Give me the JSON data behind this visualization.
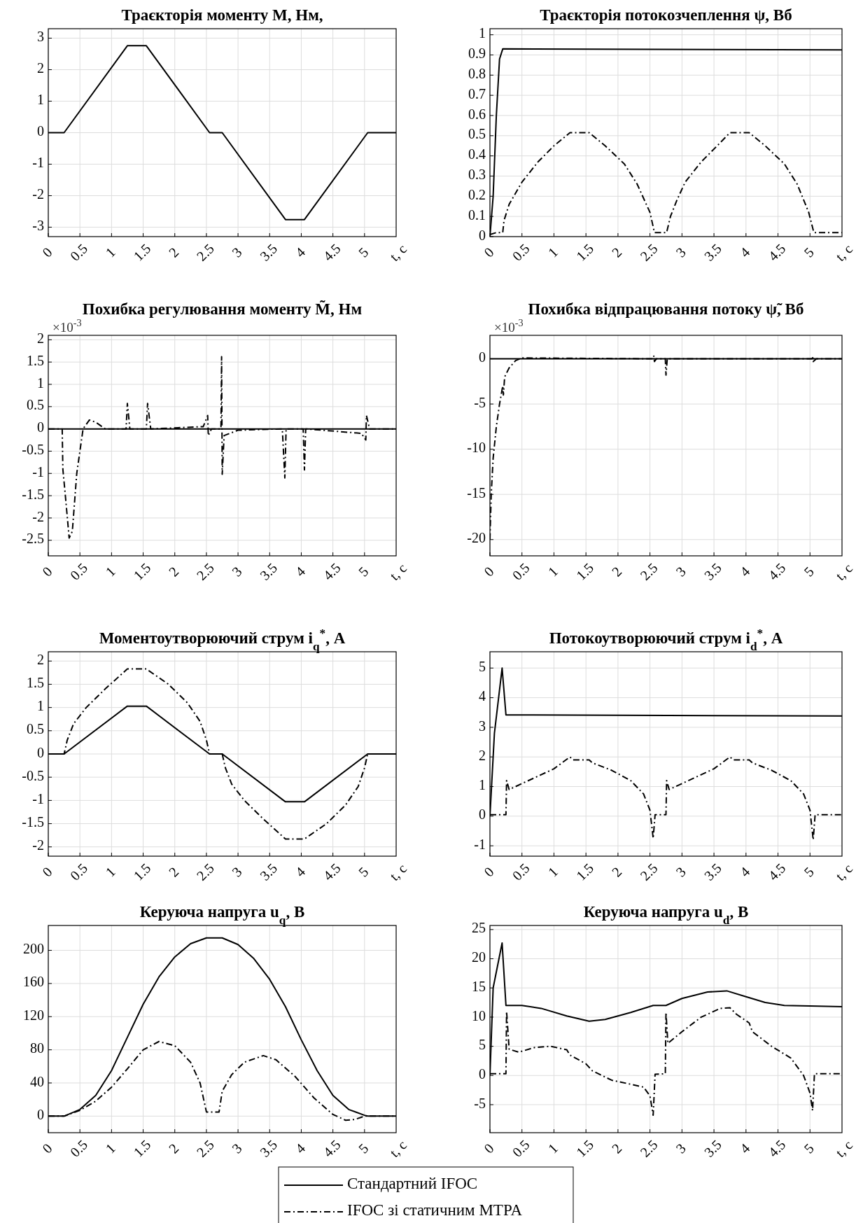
{
  "chart_data": [
    {
      "type": "line",
      "title": "Траєкторія моменту М, Нм,",
      "xlabel": "t, c",
      "xlim": [
        0,
        5.5
      ],
      "xticks": [
        0,
        0.5,
        1,
        1.5,
        2,
        2.5,
        3,
        3.5,
        4,
        4.5,
        5
      ],
      "ylim": [
        -3.3,
        3.3
      ],
      "yticks": [
        -3,
        -2,
        -1,
        0,
        1,
        2,
        3
      ],
      "grid": true,
      "series": [
        {
          "color": "#000000",
          "line_style": "solid",
          "x": [
            0,
            0.25,
            1.25,
            1.55,
            2.55,
            2.75,
            3.75,
            4.05,
            5.05,
            5.5
          ],
          "values": [
            0,
            0,
            2.76,
            2.76,
            0,
            0,
            -2.76,
            -2.76,
            0,
            0
          ]
        }
      ]
    },
    {
      "type": "line",
      "title": "Траєкторія потокозчеплення  ψ, Вб",
      "xlabel": "t, c",
      "xlim": [
        0,
        5.5
      ],
      "xticks": [
        0,
        0.5,
        1,
        1.5,
        2,
        2.5,
        3,
        3.5,
        4,
        4.5,
        5
      ],
      "ylim": [
        0,
        1.03
      ],
      "yticks": [
        0,
        0.1,
        0.2,
        0.3,
        0.4,
        0.5,
        0.6,
        0.7,
        0.8,
        0.9,
        1
      ],
      "grid": true,
      "series": [
        {
          "color": "#000000",
          "line_style": "solid",
          "x": [
            0,
            0.05,
            0.1,
            0.15,
            0.2,
            5.5
          ],
          "values": [
            0,
            0.2,
            0.6,
            0.88,
            0.93,
            0.925
          ]
        },
        {
          "color": "#000000",
          "line_style": "dashdot",
          "x": [
            0,
            0.1,
            0.2,
            0.22,
            0.3,
            0.5,
            0.75,
            1,
            1.25,
            1.55,
            1.8,
            2.1,
            2.3,
            2.5,
            2.57,
            2.76,
            2.82,
            2.92,
            3.05,
            3.3,
            3.55,
            3.75,
            4.05,
            4.3,
            4.6,
            4.8,
            4.98,
            5.06,
            5.5
          ],
          "values": [
            0.01,
            0.02,
            0.02,
            0.08,
            0.16,
            0.27,
            0.37,
            0.45,
            0.515,
            0.515,
            0.45,
            0.36,
            0.26,
            0.12,
            0.02,
            0.02,
            0.1,
            0.18,
            0.27,
            0.37,
            0.45,
            0.515,
            0.515,
            0.45,
            0.36,
            0.26,
            0.12,
            0.02,
            0.02
          ]
        }
      ]
    },
    {
      "type": "line",
      "title": "Похибка регулювання моменту M̃, Нм",
      "annotations": [
        "×10$^{-3}$"
      ],
      "xlabel": "t, c",
      "xlim": [
        0,
        5.5
      ],
      "xticks": [
        0,
        0.5,
        1,
        1.5,
        2,
        2.5,
        3,
        3.5,
        4,
        4.5,
        5
      ],
      "ylim": [
        -2.85,
        2.1
      ],
      "yticks": [
        -2.5,
        -2,
        -1.5,
        -1,
        -0.5,
        0,
        0.5,
        1,
        1.5,
        2
      ],
      "grid": true,
      "series": [
        {
          "color": "#000000",
          "line_style": "solid",
          "x": [
            0,
            5.5
          ],
          "values": [
            0,
            0
          ]
        },
        {
          "color": "#000000",
          "line_style": "dashdot",
          "x": [
            0,
            0.22,
            0.23,
            0.27,
            0.33,
            0.38,
            0.45,
            0.55,
            0.65,
            0.75,
            0.9,
            1.23,
            1.25,
            1.29,
            1.55,
            1.57,
            1.62,
            2.45,
            2.52,
            2.53,
            2.58,
            2.73,
            2.74,
            2.75,
            2.78,
            3.0,
            3.7,
            3.74,
            3.76,
            4.03,
            4.05,
            4.07,
            4.95,
            5.02,
            5.03,
            5.08,
            5.5
          ],
          "values": [
            0,
            0,
            -0.9,
            -1.5,
            -2.45,
            -2.3,
            -1,
            0,
            0.2,
            0.15,
            0,
            0,
            0.57,
            0,
            0,
            0.57,
            0,
            0.05,
            0.3,
            -0.15,
            0,
            0,
            1.62,
            -1.02,
            -0.15,
            -0.03,
            0,
            -1.1,
            0,
            0,
            -0.92,
            0,
            -0.1,
            -0.25,
            0.3,
            0,
            0
          ]
        }
      ]
    },
    {
      "type": "line",
      "title": "Похибка відпрацювання потоку ψ̃, Вб",
      "annotations": [
        "×10$^{-3}$"
      ],
      "xlabel": "t, c",
      "xlim": [
        0,
        5.5
      ],
      "xticks": [
        0,
        0.5,
        1,
        1.5,
        2,
        2.5,
        3,
        3.5,
        4,
        4.5,
        5
      ],
      "ylim": [
        -21.8,
        2.6
      ],
      "yticks": [
        -20,
        -15,
        -10,
        -5,
        0
      ],
      "grid": true,
      "series": [
        {
          "color": "#000000",
          "line_style": "solid",
          "x": [
            0,
            5.5
          ],
          "values": [
            0,
            0
          ]
        },
        {
          "color": "#000000",
          "line_style": "dashdot",
          "x": [
            0,
            0.02,
            0.05,
            0.1,
            0.15,
            0.2,
            0.21,
            0.23,
            0.3,
            0.4,
            0.5,
            2.55,
            2.56,
            2.57,
            2.6,
            2.74,
            2.75,
            2.77,
            5.03,
            5.04,
            5.05,
            5.1,
            5.5
          ],
          "values": [
            -20,
            -15,
            -11,
            -7.5,
            -5,
            -3,
            -4,
            -2,
            -1,
            -0.2,
            0.1,
            0,
            0.3,
            -0.3,
            0,
            0,
            -1.8,
            0,
            0,
            0.3,
            -0.3,
            0,
            0
          ]
        }
      ]
    },
    {
      "type": "line",
      "title": "Моментоутворюючий струм i$_{q}$$^{*}$, А",
      "xlabel": "t, c",
      "xlim": [
        0,
        5.5
      ],
      "xticks": [
        0,
        0.5,
        1,
        1.5,
        2,
        2.5,
        3,
        3.5,
        4,
        4.5,
        5
      ],
      "ylim": [
        -2.2,
        2.2
      ],
      "yticks": [
        -2,
        -1.5,
        -1,
        -0.5,
        0,
        0.5,
        1,
        1.5,
        2
      ],
      "grid": true,
      "series": [
        {
          "color": "#000000",
          "line_style": "solid",
          "x": [
            0,
            0.25,
            1.25,
            1.55,
            2.55,
            2.75,
            3.75,
            4.05,
            5.05,
            5.5
          ],
          "values": [
            0,
            0,
            1.03,
            1.03,
            0,
            0,
            -1.03,
            -1.03,
            0,
            0
          ]
        },
        {
          "color": "#000000",
          "line_style": "dashdot",
          "x": [
            0,
            0.25,
            0.3,
            0.4,
            0.6,
            0.9,
            1.25,
            1.55,
            1.9,
            2.2,
            2.4,
            2.5,
            2.55,
            2.75,
            2.8,
            2.9,
            3.1,
            3.4,
            3.75,
            4.05,
            4.4,
            4.7,
            4.9,
            5.0,
            5.05,
            5.5
          ],
          "values": [
            0,
            0,
            0.3,
            0.65,
            1.0,
            1.4,
            1.83,
            1.83,
            1.5,
            1.1,
            0.7,
            0.3,
            0,
            0,
            -0.3,
            -0.65,
            -1.0,
            -1.4,
            -1.83,
            -1.83,
            -1.5,
            -1.1,
            -0.7,
            -0.3,
            0,
            0
          ]
        }
      ]
    },
    {
      "type": "line",
      "title": "Потокоутворюючий струм i$_{d}$$^{*}$, А",
      "xlabel": "t, c",
      "xlim": [
        0,
        5.5
      ],
      "xticks": [
        0,
        0.5,
        1,
        1.5,
        2,
        2.5,
        3,
        3.5,
        4,
        4.5,
        5
      ],
      "ylim": [
        -1.35,
        5.55
      ],
      "yticks": [
        -1,
        0,
        1,
        2,
        3,
        4,
        5
      ],
      "grid": true,
      "series": [
        {
          "color": "#000000",
          "line_style": "solid",
          "x": [
            0,
            0.07,
            0.19,
            0.25,
            5.5
          ],
          "values": [
            0,
            2.8,
            5.0,
            3.42,
            3.38
          ]
        },
        {
          "color": "#000000",
          "line_style": "dashdot",
          "x": [
            0,
            0.25,
            0.26,
            0.3,
            0.5,
            0.8,
            1.0,
            1.25,
            1.3,
            1.55,
            1.6,
            1.9,
            2.2,
            2.4,
            2.5,
            2.55,
            2.58,
            2.75,
            2.76,
            2.8,
            3.0,
            3.3,
            3.5,
            3.75,
            3.8,
            4.05,
            4.1,
            4.4,
            4.7,
            4.9,
            5.0,
            5.05,
            5.08,
            5.5
          ],
          "values": [
            0.05,
            0.05,
            1.2,
            0.9,
            1.1,
            1.4,
            1.6,
            2.0,
            1.9,
            1.9,
            1.8,
            1.55,
            1.2,
            0.75,
            0.2,
            -0.75,
            0.05,
            0.05,
            1.2,
            0.9,
            1.1,
            1.4,
            1.6,
            2.0,
            1.9,
            1.9,
            1.8,
            1.55,
            1.2,
            0.75,
            0.2,
            -0.8,
            0.05,
            0.05
          ]
        }
      ]
    },
    {
      "type": "line",
      "title": "Керуюча напруга u$_{q}$, В",
      "xlabel": "t, c",
      "xlim": [
        0,
        5.5
      ],
      "xticks": [
        0,
        0.5,
        1,
        1.5,
        2,
        2.5,
        3,
        3.5,
        4,
        4.5,
        5
      ],
      "ylim": [
        -20,
        230
      ],
      "yticks": [
        0,
        40,
        80,
        120,
        160,
        200
      ],
      "grid": true,
      "series": [
        {
          "color": "#000000",
          "line_style": "solid",
          "x": [
            0,
            0.25,
            0.5,
            0.75,
            1,
            1.25,
            1.5,
            1.75,
            2,
            2.25,
            2.5,
            2.75,
            3,
            3.25,
            3.5,
            3.75,
            4,
            4.25,
            4.5,
            4.75,
            5,
            5.05,
            5.5
          ],
          "values": [
            0,
            0,
            8,
            25,
            55,
            95,
            135,
            168,
            192,
            208,
            215,
            215,
            207,
            190,
            165,
            132,
            92,
            55,
            25,
            8,
            1,
            0,
            0
          ]
        },
        {
          "color": "#000000",
          "line_style": "dashdot",
          "x": [
            0,
            0.25,
            0.5,
            0.75,
            1,
            1.25,
            1.5,
            1.75,
            2,
            2.25,
            2.4,
            2.5,
            2.7,
            2.75,
            2.9,
            3.1,
            3.4,
            3.6,
            3.9,
            4.2,
            4.5,
            4.7,
            4.85,
            5.0,
            5.5
          ],
          "values": [
            0,
            0,
            7,
            18,
            35,
            57,
            80,
            90,
            85,
            65,
            40,
            5,
            5,
            30,
            50,
            65,
            73,
            68,
            48,
            22,
            2,
            -5,
            -4,
            0,
            0
          ]
        }
      ]
    },
    {
      "type": "line",
      "title": "Керуюча напруга u$_{d}$, В",
      "legend": "bottom",
      "xlabel": "t, c",
      "xlim": [
        0,
        5.5
      ],
      "xticks": [
        0,
        0.5,
        1,
        1.5,
        2,
        2.5,
        3,
        3.5,
        4,
        4.5,
        5
      ],
      "ylim": [
        -9.8,
        25.7
      ],
      "yticks": [
        -5,
        0,
        5,
        10,
        15,
        20,
        25
      ],
      "grid": true,
      "series": [
        {
          "name": "Стандартний IFOC",
          "color": "#000000",
          "line_style": "solid",
          "x": [
            0,
            0.05,
            0.19,
            0.25,
            0.5,
            0.8,
            1.2,
            1.55,
            1.8,
            2.2,
            2.55,
            2.75,
            3.0,
            3.4,
            3.7,
            4.0,
            4.3,
            4.6,
            5.0,
            5.5
          ],
          "values": [
            0,
            15,
            22.7,
            12,
            12,
            11.5,
            10.2,
            9.3,
            9.6,
            10.8,
            12,
            12,
            13.2,
            14.3,
            14.5,
            13.5,
            12.5,
            12,
            11.9,
            11.8
          ]
        },
        {
          "name": "IFOC зі статичним MTPA",
          "color": "#000000",
          "line_style": "dashdot",
          "x": [
            0,
            0.25,
            0.26,
            0.3,
            0.45,
            0.7,
            0.95,
            1.2,
            1.25,
            1.5,
            1.6,
            1.9,
            2.2,
            2.4,
            2.5,
            2.55,
            2.58,
            2.74,
            2.75,
            2.78,
            3.0,
            3.3,
            3.6,
            3.75,
            3.85,
            4.05,
            4.1,
            4.4,
            4.7,
            4.9,
            5.0,
            5.04,
            5.07,
            5.5
          ],
          "values": [
            0.3,
            0.3,
            11,
            4.5,
            4,
            4.8,
            5,
            4.4,
            3.5,
            2,
            0.8,
            -0.8,
            -1.5,
            -2,
            -3.5,
            -6.8,
            0.2,
            0.3,
            10.8,
            5.5,
            7.5,
            10,
            11.5,
            11.6,
            10.5,
            9,
            7.5,
            5,
            3,
            0,
            -3,
            -6,
            0.3,
            0.3
          ]
        }
      ]
    }
  ]
}
